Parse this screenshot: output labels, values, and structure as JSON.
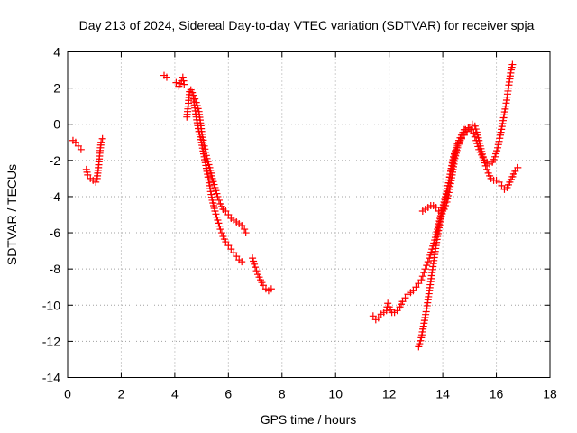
{
  "chart_data": {
    "type": "scatter",
    "title": "Day 213 of 2024, Sidereal Day-to-day VTEC variation (SDTVAR) for receiver spja",
    "xlabel": "GPS time / hours",
    "ylabel": "SDTVAR / TECUs",
    "xlim": [
      0,
      18
    ],
    "ylim": [
      -14,
      4
    ],
    "x_ticks": [
      0,
      2,
      4,
      6,
      8,
      10,
      12,
      14,
      16,
      18
    ],
    "y_ticks": [
      4,
      2,
      0,
      -2,
      -4,
      -6,
      -8,
      -10,
      -12,
      -14
    ],
    "grid": true,
    "marker": "+",
    "color": "#ff0000",
    "series": [
      {
        "name": "SDTVAR",
        "segments": [
          [
            [
              0.2,
              -0.9
            ],
            [
              0.3,
              -1.0
            ],
            [
              0.4,
              -1.2
            ],
            [
              0.5,
              -1.4
            ]
          ],
          [
            [
              0.7,
              -2.5
            ],
            [
              0.75,
              -2.8
            ],
            [
              0.85,
              -3.0
            ],
            [
              0.95,
              -3.1
            ],
            [
              1.05,
              -3.2
            ],
            [
              1.1,
              -3.0
            ],
            [
              1.15,
              -2.4
            ],
            [
              1.2,
              -1.6
            ],
            [
              1.25,
              -1.0
            ],
            [
              1.3,
              -0.8
            ]
          ],
          [
            [
              3.6,
              2.7
            ],
            [
              3.7,
              2.6
            ]
          ],
          [
            [
              4.05,
              2.3
            ],
            [
              4.15,
              2.1
            ],
            [
              4.25,
              2.4
            ],
            [
              4.3,
              2.6
            ],
            [
              4.35,
              2.2
            ]
          ],
          [
            [
              4.45,
              0.4
            ],
            [
              4.5,
              1.0
            ],
            [
              4.55,
              1.8
            ],
            [
              4.6,
              1.9
            ],
            [
              4.7,
              1.6
            ],
            [
              4.8,
              1.2
            ],
            [
              4.9,
              0.7
            ],
            [
              5.0,
              -0.4
            ],
            [
              5.1,
              -1.2
            ],
            [
              5.2,
              -1.9
            ],
            [
              5.3,
              -2.4
            ],
            [
              5.4,
              -3.0
            ],
            [
              5.5,
              -3.5
            ],
            [
              5.6,
              -4.0
            ],
            [
              5.7,
              -4.4
            ],
            [
              5.8,
              -4.7
            ],
            [
              5.9,
              -4.8
            ],
            [
              6.0,
              -5.0
            ],
            [
              6.1,
              -5.2
            ],
            [
              6.2,
              -5.3
            ],
            [
              6.3,
              -5.4
            ],
            [
              6.4,
              -5.5
            ],
            [
              6.5,
              -5.6
            ],
            [
              6.6,
              -5.8
            ],
            [
              6.65,
              -6.0
            ]
          ],
          [
            [
              4.7,
              1.4
            ],
            [
              4.8,
              0.4
            ],
            [
              4.9,
              -0.4
            ],
            [
              5.0,
              -1.0
            ],
            [
              5.1,
              -1.8
            ],
            [
              5.2,
              -2.6
            ],
            [
              5.3,
              -3.4
            ],
            [
              5.4,
              -4.2
            ],
            [
              5.5,
              -4.8
            ],
            [
              5.6,
              -5.3
            ],
            [
              5.7,
              -5.8
            ],
            [
              5.8,
              -6.2
            ],
            [
              5.9,
              -6.5
            ],
            [
              6.0,
              -6.7
            ],
            [
              6.1,
              -6.9
            ],
            [
              6.2,
              -7.1
            ],
            [
              6.3,
              -7.3
            ],
            [
              6.4,
              -7.5
            ],
            [
              6.5,
              -7.6
            ]
          ],
          [
            [
              6.9,
              -7.4
            ],
            [
              7.0,
              -7.9
            ],
            [
              7.1,
              -8.3
            ],
            [
              7.2,
              -8.6
            ],
            [
              7.3,
              -8.9
            ],
            [
              7.4,
              -9.1
            ],
            [
              7.5,
              -9.2
            ],
            [
              7.6,
              -9.1
            ]
          ],
          [
            [
              11.4,
              -10.6
            ],
            [
              11.5,
              -10.8
            ],
            [
              11.6,
              -10.7
            ],
            [
              11.7,
              -10.5
            ],
            [
              11.8,
              -10.4
            ],
            [
              11.9,
              -10.3
            ],
            [
              11.95,
              -9.9
            ],
            [
              12.0,
              -10.1
            ],
            [
              12.1,
              -10.4
            ],
            [
              12.2,
              -10.4
            ],
            [
              12.3,
              -10.3
            ],
            [
              12.4,
              -10.1
            ],
            [
              12.5,
              -9.8
            ],
            [
              12.6,
              -9.6
            ],
            [
              12.7,
              -9.4
            ],
            [
              12.8,
              -9.3
            ],
            [
              12.9,
              -9.2
            ],
            [
              13.0,
              -9.0
            ],
            [
              13.1,
              -8.8
            ],
            [
              13.2,
              -8.6
            ],
            [
              13.3,
              -8.2
            ],
            [
              13.4,
              -7.8
            ],
            [
              13.5,
              -7.4
            ],
            [
              13.6,
              -6.9
            ],
            [
              13.7,
              -6.4
            ],
            [
              13.8,
              -5.8
            ],
            [
              13.9,
              -5.2
            ],
            [
              14.0,
              -4.6
            ],
            [
              14.1,
              -4.0
            ],
            [
              14.2,
              -3.4
            ],
            [
              14.3,
              -2.6
            ],
            [
              14.4,
              -2.0
            ],
            [
              14.5,
              -1.4
            ],
            [
              14.6,
              -1.0
            ],
            [
              14.7,
              -0.8
            ],
            [
              14.8,
              -0.6
            ],
            [
              14.9,
              -0.4
            ],
            [
              15.0,
              -0.2
            ],
            [
              15.1,
              0.0
            ],
            [
              15.2,
              -0.1
            ],
            [
              15.3,
              -0.6
            ],
            [
              15.4,
              -1.2
            ],
            [
              15.5,
              -1.8
            ],
            [
              15.6,
              -2.3
            ],
            [
              15.7,
              -2.7
            ],
            [
              15.8,
              -3.0
            ],
            [
              15.9,
              -3.1
            ],
            [
              16.0,
              -3.1
            ],
            [
              16.1,
              -3.2
            ],
            [
              16.2,
              -3.4
            ],
            [
              16.3,
              -3.6
            ],
            [
              16.4,
              -3.5
            ],
            [
              16.5,
              -3.2
            ],
            [
              16.6,
              -2.9
            ],
            [
              16.7,
              -2.6
            ],
            [
              16.8,
              -2.4
            ]
          ],
          [
            [
              13.25,
              -4.8
            ],
            [
              13.35,
              -4.7
            ],
            [
              13.45,
              -4.6
            ],
            [
              13.55,
              -4.5
            ],
            [
              13.65,
              -4.5
            ],
            [
              13.75,
              -4.6
            ],
            [
              13.85,
              -4.8
            ],
            [
              13.95,
              -4.9
            ],
            [
              14.05,
              -4.7
            ],
            [
              14.15,
              -4.3
            ],
            [
              14.25,
              -3.6
            ],
            [
              14.35,
              -2.8
            ],
            [
              14.45,
              -1.9
            ],
            [
              14.55,
              -1.3
            ],
            [
              14.65,
              -0.9
            ],
            [
              14.75,
              -0.6
            ],
            [
              14.85,
              -0.3
            ],
            [
              14.95,
              -0.2
            ],
            [
              15.05,
              -0.3
            ],
            [
              15.15,
              -0.5
            ],
            [
              15.25,
              -0.9
            ],
            [
              15.35,
              -1.4
            ],
            [
              15.45,
              -1.7
            ],
            [
              15.55,
              -2.0
            ],
            [
              15.65,
              -2.1
            ],
            [
              15.75,
              -2.2
            ],
            [
              15.85,
              -2.1
            ],
            [
              15.95,
              -1.8
            ],
            [
              16.05,
              -1.3
            ],
            [
              16.15,
              -0.6
            ],
            [
              16.25,
              0.2
            ],
            [
              16.35,
              1.0
            ],
            [
              16.45,
              2.0
            ],
            [
              16.55,
              3.0
            ],
            [
              16.6,
              3.3
            ]
          ],
          [
            [
              13.1,
              -12.3
            ],
            [
              13.2,
              -11.8
            ],
            [
              13.3,
              -11.0
            ],
            [
              13.4,
              -10.2
            ],
            [
              13.5,
              -9.2
            ],
            [
              13.6,
              -8.2
            ],
            [
              13.7,
              -7.2
            ],
            [
              13.8,
              -6.2
            ],
            [
              13.9,
              -5.4
            ],
            [
              14.0,
              -4.8
            ],
            [
              14.1,
              -4.2
            ],
            [
              14.2,
              -3.4
            ],
            [
              14.3,
              -2.6
            ],
            [
              14.4,
              -1.8
            ],
            [
              14.5,
              -1.3
            ],
            [
              14.6,
              -0.9
            ],
            [
              14.7,
              -0.6
            ],
            [
              14.8,
              -0.3
            ]
          ]
        ]
      }
    ]
  }
}
